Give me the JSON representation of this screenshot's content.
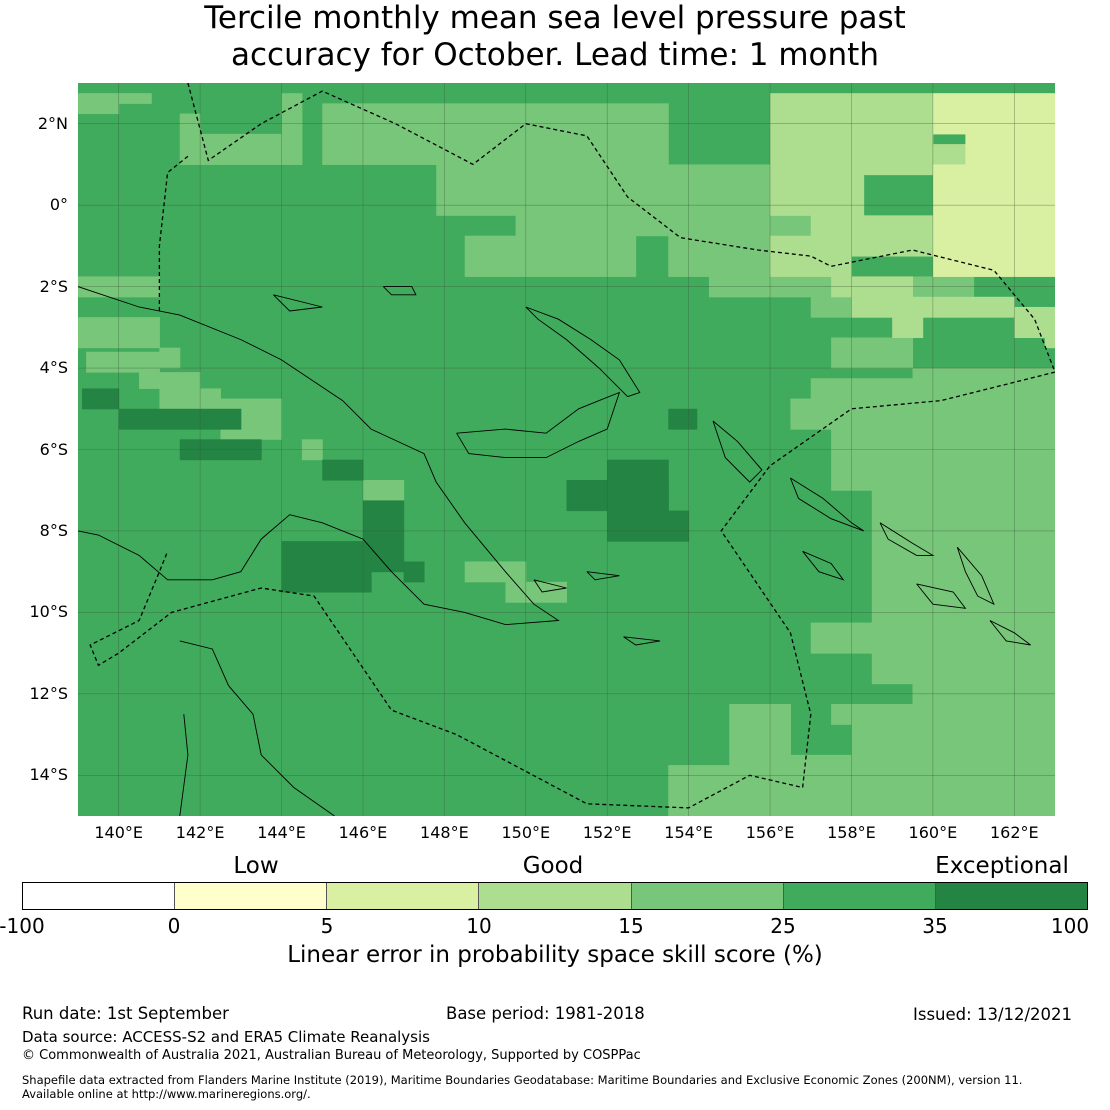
{
  "title_line1": "Tercile monthly mean sea level pressure past",
  "title_line2": "accuracy for October. Lead time: 1 month",
  "map": {
    "lon_range": [
      139,
      163
    ],
    "lat_range": [
      -15,
      3
    ],
    "lon_ticks": [
      "140°E",
      "142°E",
      "144°E",
      "146°E",
      "148°E",
      "150°E",
      "152°E",
      "154°E",
      "156°E",
      "158°E",
      "160°E",
      "162°E"
    ],
    "lat_ticks": [
      "2°N",
      "0°",
      "2°S",
      "4°S",
      "6°S",
      "8°S",
      "10°S",
      "12°S",
      "14°S"
    ],
    "class_colors": [
      "#fdfdfd",
      "#ffffcc",
      "#d9f0a3",
      "#addd8e",
      "#78c679",
      "#41ab5d",
      "#238443"
    ]
  },
  "colorbar": {
    "categories": [
      "Low",
      "Good",
      "Exceptional"
    ],
    "ticks": [
      "-100",
      "0",
      "5",
      "10",
      "15",
      "25",
      "35",
      "100"
    ],
    "colors": [
      "#ffffff",
      "#ffffcc",
      "#d9f0a3",
      "#addd8e",
      "#78c679",
      "#41ab5d",
      "#238443"
    ],
    "label": "Linear error in probability space skill score (%)"
  },
  "footer": {
    "run_date": "Run date: 1st September",
    "base_period": "Base period: 1981-2018",
    "issued": "Issued: 13/12/2021",
    "data_source": "Data source: ACCESS-S2 and ERA5 Climate Reanalysis",
    "copyright": "© Commonwealth of Australia 2021, Australian Bureau of Meteorology, Supported by COSPPac",
    "shapefile_1": "Shapefile data extracted from Flanders Marine Institute (2019), Maritime Boundaries Geodatabase: Maritime Boundaries and Exclusive Economic Zones (200NM), version 11.",
    "shapefile_2": "Available online at http://www.marineregions.org/."
  }
}
